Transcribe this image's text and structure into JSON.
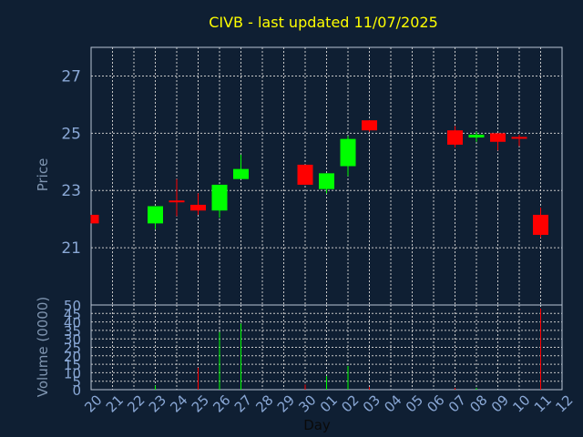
{
  "chart_data": {
    "type": "candlestick",
    "title": "CIVB - last updated 11/07/2025",
    "xlabel": "Day",
    "ylabel_price": "Price",
    "ylabel_volume": "Volume (0000)",
    "price_ylim": [
      19.0,
      28.0
    ],
    "price_ticks": [
      21,
      23,
      25,
      27
    ],
    "volume_ylim": [
      0,
      50
    ],
    "volume_ticks": [
      0,
      5,
      10,
      15,
      20,
      25,
      30,
      35,
      40,
      45,
      50
    ],
    "x_tick_labels": [
      "20",
      "21",
      "22",
      "23",
      "24",
      "25",
      "26",
      "27",
      "28",
      "29",
      "30",
      "01",
      "02",
      "03",
      "04",
      "05",
      "06",
      "07",
      "08",
      "09",
      "10",
      "11",
      "12"
    ],
    "grid": true,
    "colors": {
      "up": "#00ff00",
      "down": "#ff0000",
      "title": "#ffff00",
      "background": "#0f1f33"
    },
    "candles": [
      {
        "slot": 0,
        "open": 22.15,
        "high": 22.15,
        "low": 21.85,
        "close": 21.85,
        "volume": 0
      },
      {
        "slot": 3,
        "open": 21.85,
        "high": 22.45,
        "low": 21.65,
        "close": 22.45,
        "volume": 2.5
      },
      {
        "slot": 4,
        "open": 22.65,
        "high": 23.4,
        "low": 22.1,
        "close": 22.6,
        "volume": 0
      },
      {
        "slot": 5,
        "open": 22.5,
        "high": 22.9,
        "low": 22.15,
        "close": 22.3,
        "volume": 13
      },
      {
        "slot": 6,
        "open": 22.3,
        "high": 23.2,
        "low": 22.05,
        "close": 23.2,
        "volume": 34
      },
      {
        "slot": 7,
        "open": 23.4,
        "high": 24.25,
        "low": 23.4,
        "close": 23.75,
        "volume": 39
      },
      {
        "slot": 10,
        "open": 23.9,
        "high": 23.9,
        "low": 23.2,
        "close": 23.2,
        "volume": 3
      },
      {
        "slot": 11,
        "open": 23.05,
        "high": 23.6,
        "low": 22.9,
        "close": 23.6,
        "volume": 8
      },
      {
        "slot": 12,
        "open": 23.85,
        "high": 24.9,
        "low": 23.5,
        "close": 24.8,
        "volume": 14
      },
      {
        "slot": 13,
        "open": 25.45,
        "high": 25.45,
        "low": 25.05,
        "close": 25.1,
        "volume": 1.5
      },
      {
        "slot": 17,
        "open": 25.1,
        "high": 25.25,
        "low": 24.5,
        "close": 24.6,
        "volume": 1
      },
      {
        "slot": 18,
        "open": 24.85,
        "high": 25.05,
        "low": 24.7,
        "close": 24.95,
        "volume": 1
      },
      {
        "slot": 19,
        "open": 25.0,
        "high": 25.0,
        "low": 24.4,
        "close": 24.7,
        "volume": 0
      },
      {
        "slot": 20,
        "open": 24.87,
        "high": 24.95,
        "low": 24.55,
        "close": 24.85,
        "volume": 0
      },
      {
        "slot": 21,
        "open": 22.15,
        "high": 22.4,
        "low": 21.35,
        "close": 21.45,
        "volume": 48
      }
    ]
  }
}
